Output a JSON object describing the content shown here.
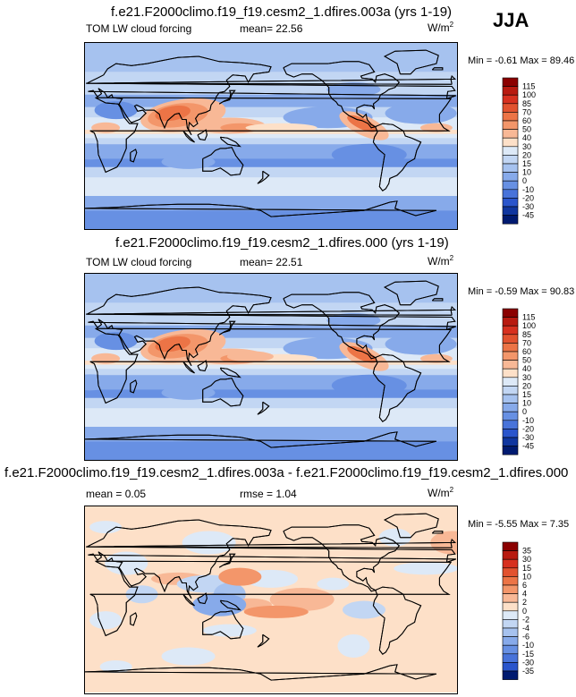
{
  "season": "JJA",
  "units_base": "W/m",
  "units_exp": "2",
  "panels": [
    {
      "title": "f.e21.F2000climo.f19_f19.cesm2_1.dfires.003a (yrs 1-19)",
      "variable": "TOM LW cloud forcing",
      "mean_label": "mean=",
      "mean_value": "22.56",
      "min_label": "Min =",
      "min_value": "-0.61",
      "max_label": "Max =",
      "max_value": "89.46",
      "colorbar_labels": [
        "115",
        "100",
        "85",
        "70",
        "60",
        "50",
        "40",
        "30",
        "20",
        "15",
        "10",
        "0",
        "-10",
        "-20",
        "-30",
        "-45"
      ]
    },
    {
      "title": "f.e21.F2000climo.f19_f19.cesm2_1.dfires.000 (yrs 1-19)",
      "variable": "TOM LW cloud forcing",
      "mean_label": "mean=",
      "mean_value": "22.51",
      "min_label": "Min =",
      "min_value": "-0.59",
      "max_label": "Max =",
      "max_value": "90.83",
      "colorbar_labels": [
        "115",
        "100",
        "85",
        "70",
        "60",
        "50",
        "40",
        "30",
        "20",
        "15",
        "10",
        "0",
        "-10",
        "-20",
        "-30",
        "-45"
      ]
    },
    {
      "title": "f.e21.F2000climo.f19_f19.cesm2_1.dfires.003a - f.e21.F2000climo.f19_f19.cesm2_1.dfires.000",
      "mean_label": "mean =",
      "mean_value": "0.05",
      "rmse_label": "rmse =",
      "rmse_value": "1.04",
      "min_label": "Min =",
      "min_value": "-5.55",
      "max_label": "Max =",
      "max_value": "7.35",
      "colorbar_labels": [
        "35",
        "30",
        "15",
        "10",
        "6",
        "4",
        "2",
        "0",
        "-2",
        "-4",
        "-6",
        "-10",
        "-15",
        "-30",
        "-35"
      ]
    }
  ],
  "chart_data": [
    {
      "type": "heatmap",
      "title": "f.e21.F2000climo.f19_f19.cesm2_1.dfires.003a (yrs 1-19)",
      "variable": "TOM LW cloud forcing",
      "units": "W/m2",
      "season": "JJA",
      "mean": 22.56,
      "min": -0.61,
      "max": 89.46,
      "colorbar_levels": [
        115,
        100,
        85,
        70,
        60,
        50,
        40,
        30,
        20,
        15,
        10,
        0,
        -10,
        -20,
        -30,
        -45
      ],
      "colors": [
        "#8b0000",
        "#b81a10",
        "#d7301f",
        "#e2522f",
        "#ec7446",
        "#f3966a",
        "#f8b896",
        "#fde0c8",
        "#dde9f7",
        "#c2d6f3",
        "#a6c2ef",
        "#87aaea",
        "#6790e3",
        "#4873da",
        "#2a55cc",
        "#10369f",
        "#001a70"
      ]
    },
    {
      "type": "heatmap",
      "title": "f.e21.F2000climo.f19_f19.cesm2_1.dfires.000 (yrs 1-19)",
      "variable": "TOM LW cloud forcing",
      "units": "W/m2",
      "season": "JJA",
      "mean": 22.51,
      "min": -0.59,
      "max": 90.83,
      "colorbar_levels": [
        115,
        100,
        85,
        70,
        60,
        50,
        40,
        30,
        20,
        15,
        10,
        0,
        -10,
        -20,
        -30,
        -45
      ]
    },
    {
      "type": "heatmap",
      "title": "f.e21.F2000climo.f19_f19.cesm2_1.dfires.003a - f.e21.F2000climo.f19_f19.cesm2_1.dfires.000",
      "units": "W/m2",
      "season": "JJA",
      "mean": 0.05,
      "rmse": 1.04,
      "min": -5.55,
      "max": 7.35,
      "colorbar_levels": [
        35,
        30,
        15,
        10,
        6,
        4,
        2,
        0,
        -2,
        -4,
        -6,
        -10,
        -15,
        -30,
        -35
      ],
      "colors": [
        "#8b0000",
        "#b81a10",
        "#d7301f",
        "#e2522f",
        "#ec7446",
        "#f3966a",
        "#f8b896",
        "#fde0c8",
        "#dde9f7",
        "#c2d6f3",
        "#a6c2ef",
        "#87aaea",
        "#6790e3",
        "#4873da",
        "#2a55cc",
        "#001a70"
      ]
    }
  ]
}
